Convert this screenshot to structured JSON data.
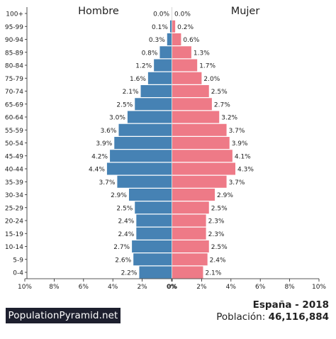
{
  "chart_data": {
    "type": "bar",
    "orientation": "horizontal-pyramid",
    "categories": [
      "100+",
      "95-99",
      "90-94",
      "85-89",
      "80-84",
      "75-79",
      "70-74",
      "65-69",
      "60-64",
      "55-59",
      "50-54",
      "45-49",
      "40-44",
      "35-39",
      "30-34",
      "25-29",
      "20-24",
      "15-19",
      "10-14",
      "5-9",
      "0-4"
    ],
    "series": [
      {
        "name": "Hombre",
        "color": "#4682b4",
        "values": [
          0.0,
          0.1,
          0.3,
          0.8,
          1.2,
          1.6,
          2.1,
          2.5,
          3.0,
          3.6,
          3.9,
          4.2,
          4.4,
          3.7,
          2.9,
          2.5,
          2.4,
          2.4,
          2.7,
          2.6,
          2.2
        ],
        "labels": [
          "0.0%",
          "0.1%",
          "0.3%",
          "0.8%",
          "1.2%",
          "1.6%",
          "2.1%",
          "2.5%",
          "3.0%",
          "3.6%",
          "3.9%",
          "4.2%",
          "4.4%",
          "3.7%",
          "2.9%",
          "2.5%",
          "2.4%",
          "2.4%",
          "2.7%",
          "2.6%",
          "2.2%"
        ]
      },
      {
        "name": "Mujer",
        "color": "#ee7a87",
        "values": [
          0.0,
          0.2,
          0.6,
          1.3,
          1.7,
          2.0,
          2.5,
          2.7,
          3.2,
          3.7,
          3.9,
          4.1,
          4.3,
          3.7,
          2.9,
          2.5,
          2.3,
          2.3,
          2.5,
          2.4,
          2.1
        ],
        "labels": [
          "0.0%",
          "0.2%",
          "0.6%",
          "1.3%",
          "1.7%",
          "2.0%",
          "2.5%",
          "2.7%",
          "3.2%",
          "3.7%",
          "3.9%",
          "4.1%",
          "4.3%",
          "3.7%",
          "2.9%",
          "2.5%",
          "2.3%",
          "2.3%",
          "2.5%",
          "2.4%",
          "2.1%"
        ]
      }
    ],
    "xlim": [
      0,
      10
    ],
    "x_ticks_left": [
      "10%",
      "8%",
      "6%",
      "4%",
      "2%",
      "0%"
    ],
    "x_ticks_right": [
      "0%",
      "2%",
      "4%",
      "6%",
      "8%",
      "10%"
    ],
    "grid": false
  },
  "footer": {
    "brand": "PopulationPyramid.net",
    "country_year": "España - 2018",
    "population_label": "Población:",
    "population_value": "46,116,884"
  }
}
